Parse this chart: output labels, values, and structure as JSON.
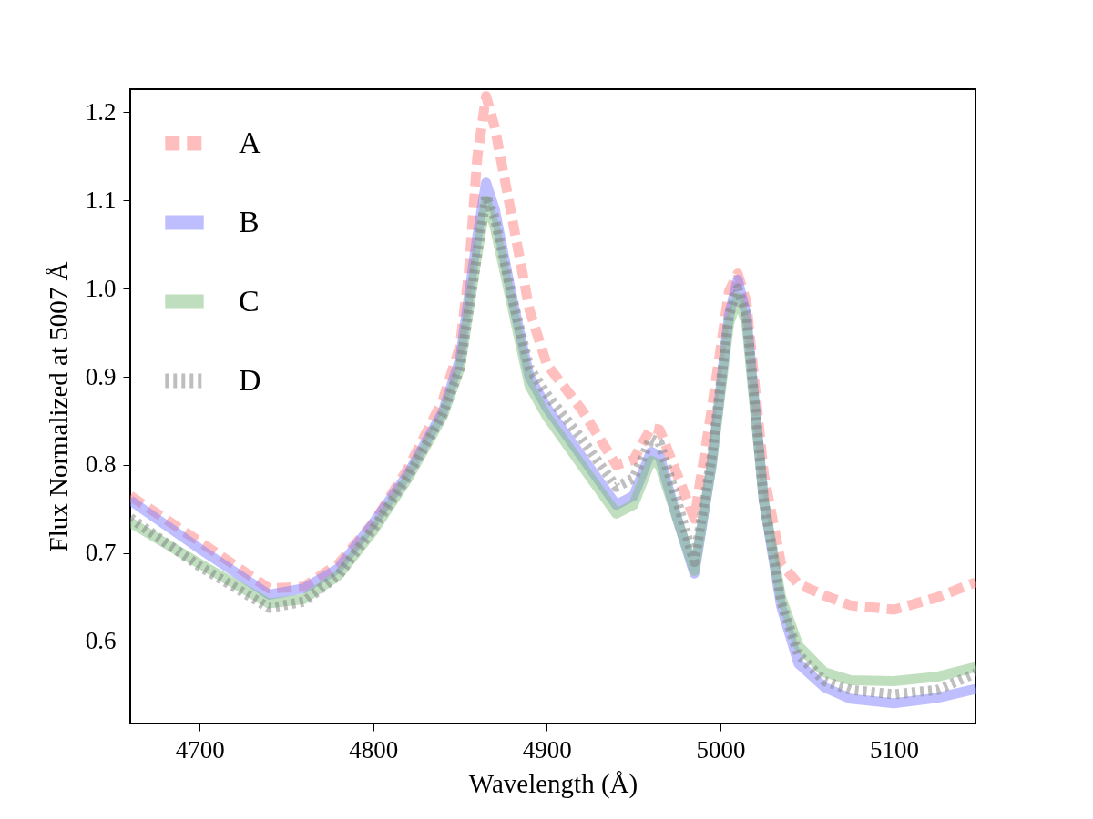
{
  "chart_data": {
    "type": "line",
    "xlabel": "Wavelength (Å)",
    "ylabel": "Flux Normalized at 5007 Å",
    "xlim": [
      4660,
      5147
    ],
    "ylim": [
      0.507,
      1.226
    ],
    "xticks": [
      4700,
      4800,
      4900,
      5000,
      5100
    ],
    "yticks": [
      0.6,
      0.7,
      0.8,
      0.9,
      {
        "value": 1,
        "label": "1.0"
      },
      1.1,
      1.2
    ],
    "grid": false,
    "legend": "top left",
    "x": [
      4660,
      4700,
      4740,
      4760,
      4780,
      4800,
      4820,
      4840,
      4850,
      4855,
      4860,
      4865,
      4870,
      4880,
      4890,
      4900,
      4920,
      4940,
      4950,
      4960,
      4965,
      4975,
      4985,
      4995,
      5005,
      5010,
      5015,
      5025,
      5035,
      5045,
      5060,
      5075,
      5100,
      5125,
      5147
    ],
    "series": [
      {
        "name": "A",
        "color": "#ff7f7f",
        "line_style": "dashed",
        "values": [
          0.765,
          0.713,
          0.66,
          0.662,
          0.688,
          0.734,
          0.796,
          0.873,
          0.935,
          1.017,
          1.15,
          1.218,
          1.183,
          1.08,
          0.976,
          0.914,
          0.863,
          0.8,
          0.806,
          0.842,
          0.84,
          0.79,
          0.739,
          0.863,
          0.997,
          1.017,
          0.985,
          0.79,
          0.688,
          0.665,
          0.652,
          0.641,
          0.636,
          0.65,
          0.667
        ]
      },
      {
        "name": "B",
        "color": "#7f7fff",
        "line_style": "solid",
        "values": [
          0.76,
          0.705,
          0.653,
          0.66,
          0.683,
          0.734,
          0.79,
          0.86,
          0.92,
          0.99,
          1.06,
          1.12,
          1.09,
          0.99,
          0.9,
          0.865,
          0.81,
          0.755,
          0.765,
          0.815,
          0.81,
          0.74,
          0.677,
          0.8,
          0.97,
          1.01,
          0.97,
          0.76,
          0.64,
          0.575,
          0.548,
          0.535,
          0.53,
          0.536,
          0.546
        ]
      },
      {
        "name": "C",
        "color": "#7fbf7f",
        "line_style": "solid",
        "values": [
          0.735,
          0.688,
          0.643,
          0.648,
          0.675,
          0.725,
          0.785,
          0.855,
          0.91,
          0.975,
          1.04,
          1.1,
          1.07,
          0.98,
          0.89,
          0.855,
          0.8,
          0.745,
          0.755,
          0.805,
          0.8,
          0.74,
          0.68,
          0.8,
          0.96,
          0.99,
          0.96,
          0.76,
          0.65,
          0.595,
          0.565,
          0.556,
          0.555,
          0.56,
          0.571
        ]
      },
      {
        "name": "D",
        "color": "#7f7f7f",
        "line_style": "dotted",
        "values": [
          0.74,
          0.685,
          0.638,
          0.645,
          0.675,
          0.728,
          0.787,
          0.857,
          0.91,
          0.975,
          1.04,
          1.105,
          1.08,
          0.99,
          0.91,
          0.88,
          0.83,
          0.775,
          0.785,
          0.83,
          0.825,
          0.76,
          0.69,
          0.81,
          0.97,
          1.0,
          0.97,
          0.76,
          0.645,
          0.585,
          0.555,
          0.545,
          0.54,
          0.545,
          0.564
        ]
      }
    ]
  }
}
